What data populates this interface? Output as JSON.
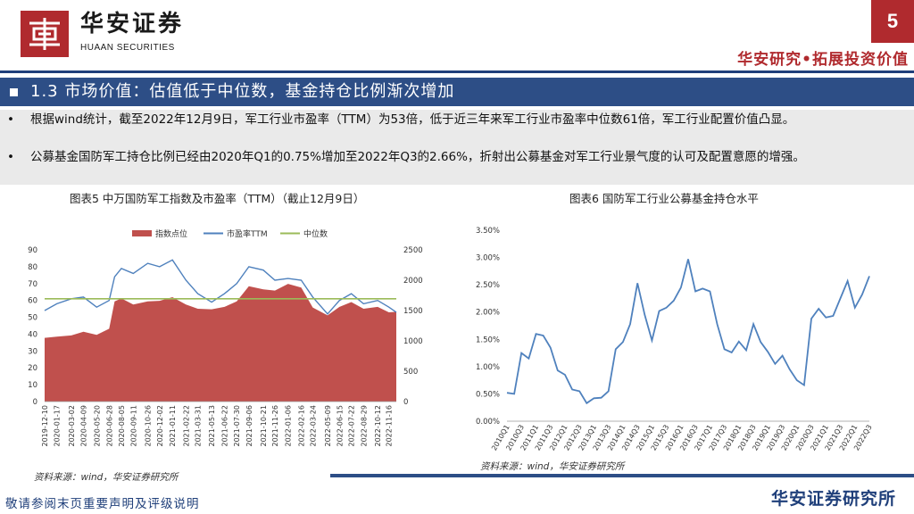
{
  "header": {
    "logo_cn": "华安证券",
    "logo_en": "HUAAN SECURITIES",
    "page_number": "5",
    "slogan": "华安研究•拓展投资价值",
    "brand_color": "#b02a2e",
    "navy_color": "#2d4e86"
  },
  "section": {
    "title": "1.3 市场价值：估值低于中位数，基金持仓比例渐次增加"
  },
  "bullets": [
    {
      "marker": "•",
      "text": "根据wind统计，截至2022年12月9日，军工行业市盈率（TTM）为53倍，低于近三年来军工行业市盈率中位数61倍，军工行业配置价值凸显。"
    },
    {
      "marker": "•",
      "text": "公募基金国防军工持仓比例已经由2020年Q1的0.75%增加至2022年Q3的2.66%，折射出公募基金对军工行业景气度的认可及配置意愿的增强。"
    }
  ],
  "figures": {
    "fig5_title": "图表5 中万国防军工指数及市盈率（TTM）（截止12月9日）",
    "fig6_title": "图表6 国防军工行业公募基金持仓水平",
    "source_left": "资料来源：wind，华安证券研究所",
    "source_right": "资料来源：wind，华安证券研究所"
  },
  "footer": {
    "disclaimer": "敬请参阅末页重要声明及评级说明",
    "brand": "华安证券研究所"
  },
  "chart_data": [
    {
      "type": "area",
      "legend_position": "top",
      "series": [
        {
          "name": "指数点位",
          "style": "area",
          "axis": "right",
          "color": "#c0504d"
        },
        {
          "name": "市盈率TTM",
          "style": "line",
          "axis": "left",
          "color": "#4f81bd"
        },
        {
          "name": "中位数",
          "style": "line",
          "axis": "left",
          "color": "#9bbb59"
        }
      ],
      "x_tick_labels": [
        "2019-12-10",
        "2020-01-17",
        "2020-03-02",
        "2020-04-09",
        "2020-05-20",
        "2020-06-28",
        "2020-08-05",
        "2020-09-11",
        "2020-10-26",
        "2020-12-02",
        "2021-01-11",
        "2021-02-22",
        "2021-03-31",
        "2021-05-13",
        "2021-06-22",
        "2021-07-30",
        "2021-09-06",
        "2021-10-21",
        "2021-11-26",
        "2022-01-06",
        "2022-02-16",
        "2022-03-24",
        "2022-05-09",
        "2022-06-15",
        "2022-07-22",
        "2022-08-29",
        "2022-10-12",
        "2022-11-16"
      ],
      "dates": [
        "2019-12-10",
        "2020-01-17",
        "2020-03-02",
        "2020-04-09",
        "2020-05-20",
        "2020-06-28",
        "2020-07-15",
        "2020-08-05",
        "2020-09-11",
        "2020-10-26",
        "2020-12-02",
        "2021-01-11",
        "2021-02-22",
        "2021-03-31",
        "2021-05-13",
        "2021-06-22",
        "2021-07-30",
        "2021-09-06",
        "2021-10-21",
        "2021-11-26",
        "2022-01-06",
        "2022-02-16",
        "2022-03-24",
        "2022-05-09",
        "2022-06-15",
        "2022-07-22",
        "2022-08-29",
        "2022-10-12",
        "2022-11-16",
        "2022-12-09"
      ],
      "index_points": [
        1050,
        1070,
        1090,
        1150,
        1100,
        1200,
        1650,
        1700,
        1600,
        1650,
        1660,
        1720,
        1600,
        1530,
        1520,
        1560,
        1650,
        1900,
        1850,
        1830,
        1940,
        1880,
        1550,
        1420,
        1560,
        1640,
        1530,
        1560,
        1470,
        1480
      ],
      "pe_ttm": [
        54,
        58,
        61,
        62,
        56,
        60,
        74,
        79,
        76,
        82,
        80,
        84,
        72,
        64,
        59,
        64,
        70,
        80,
        78,
        72,
        73,
        72,
        62,
        52,
        60,
        64,
        58,
        60,
        56,
        53
      ],
      "median_pe": 61,
      "left_axis": {
        "ticks": [
          "0",
          "10",
          "20",
          "30",
          "40",
          "50",
          "60",
          "70",
          "80",
          "90"
        ],
        "ylim": [
          0,
          90
        ]
      },
      "right_axis": {
        "ticks": [
          "0",
          "500",
          "1000",
          "1500",
          "2000",
          "2500"
        ],
        "ylim": [
          0,
          2500
        ]
      }
    },
    {
      "type": "line",
      "series": [
        {
          "name": "",
          "color": "#4f81bd"
        }
      ],
      "x_tick_labels": [
        "2010Q1",
        "2010Q3",
        "2011Q1",
        "2011Q3",
        "2012Q1",
        "2012Q3",
        "2013Q1",
        "2013Q3",
        "2014Q1",
        "2014Q3",
        "2015Q1",
        "2015Q3",
        "2016Q1",
        "2016Q3",
        "2017Q1",
        "2017Q3",
        "2018Q1",
        "2018Q3",
        "2019Q1",
        "2019Q3",
        "2020Q1",
        "2020Q3",
        "2021Q1",
        "2021Q3",
        "2022Q1",
        "2022Q3"
      ],
      "quarters": [
        "2010Q1",
        "2010Q2",
        "2010Q3",
        "2010Q4",
        "2011Q1",
        "2011Q2",
        "2011Q3",
        "2011Q4",
        "2012Q1",
        "2012Q2",
        "2012Q3",
        "2012Q4",
        "2013Q1",
        "2013Q2",
        "2013Q3",
        "2013Q4",
        "2014Q1",
        "2014Q2",
        "2014Q3",
        "2014Q4",
        "2015Q1",
        "2015Q2",
        "2015Q3",
        "2015Q4",
        "2016Q1",
        "2016Q2",
        "2016Q3",
        "2016Q4",
        "2017Q1",
        "2017Q2",
        "2017Q3",
        "2017Q4",
        "2018Q1",
        "2018Q2",
        "2018Q3",
        "2018Q4",
        "2019Q1",
        "2019Q2",
        "2019Q3",
        "2019Q4",
        "2020Q1",
        "2020Q2",
        "2020Q3",
        "2020Q4",
        "2021Q1",
        "2021Q2",
        "2021Q3",
        "2021Q4",
        "2022Q1",
        "2022Q2",
        "2022Q3"
      ],
      "values": [
        0.52,
        0.5,
        1.25,
        1.15,
        1.6,
        1.57,
        1.35,
        0.93,
        0.85,
        0.58,
        0.55,
        0.33,
        0.42,
        0.43,
        0.55,
        1.32,
        1.45,
        1.78,
        2.53,
        1.95,
        1.48,
        2.02,
        2.08,
        2.21,
        2.45,
        2.97,
        2.38,
        2.43,
        2.38,
        1.78,
        1.32,
        1.26,
        1.46,
        1.3,
        1.78,
        1.45,
        1.27,
        1.05,
        1.2,
        0.95,
        0.75,
        0.66,
        1.88,
        2.06,
        1.9,
        1.93,
        2.25,
        2.57,
        2.08,
        2.32,
        2.66
      ],
      "y_ticks": [
        "0.00%",
        "0.50%",
        "1.00%",
        "1.50%",
        "2.00%",
        "2.50%",
        "3.00%",
        "3.50%"
      ],
      "ylim": [
        0,
        3.5
      ],
      "y_unit": "%"
    }
  ]
}
